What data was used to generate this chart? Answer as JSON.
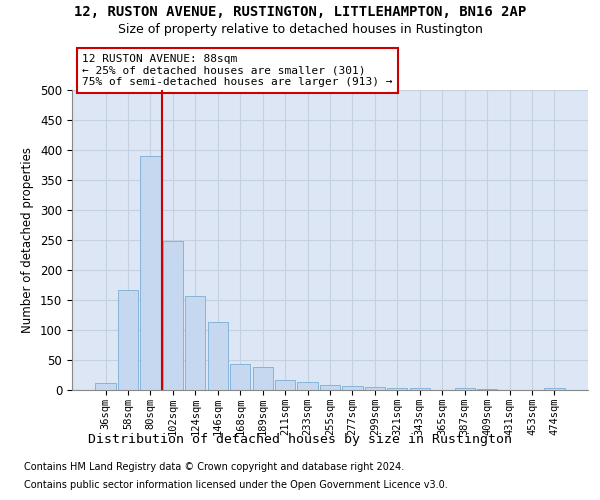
{
  "title1": "12, RUSTON AVENUE, RUSTINGTON, LITTLEHAMPTON, BN16 2AP",
  "title2": "Size of property relative to detached houses in Rustington",
  "xlabel": "Distribution of detached houses by size in Rustington",
  "ylabel": "Number of detached properties",
  "categories": [
    "36sqm",
    "58sqm",
    "80sqm",
    "102sqm",
    "124sqm",
    "146sqm",
    "168sqm",
    "189sqm",
    "211sqm",
    "233sqm",
    "255sqm",
    "277sqm",
    "299sqm",
    "321sqm",
    "343sqm",
    "365sqm",
    "387sqm",
    "409sqm",
    "431sqm",
    "453sqm",
    "474sqm"
  ],
  "values": [
    12,
    167,
    390,
    248,
    157,
    113,
    44,
    39,
    17,
    13,
    9,
    6,
    5,
    4,
    3,
    0,
    4,
    1,
    0,
    0,
    4
  ],
  "bar_color": "#c5d8f0",
  "bar_edge_color": "#7aadd4",
  "vline_color": "#cc0000",
  "vline_index": 2.5,
  "annotation_text": "12 RUSTON AVENUE: 88sqm\n← 25% of detached houses are smaller (301)\n75% of semi-detached houses are larger (913) →",
  "annotation_box_facecolor": "#ffffff",
  "annotation_box_edgecolor": "#cc0000",
  "grid_color": "#c5d0e0",
  "background_color": "#dce6f5",
  "ylim": [
    0,
    500
  ],
  "yticks": [
    0,
    50,
    100,
    150,
    200,
    250,
    300,
    350,
    400,
    450,
    500
  ],
  "footnote1": "Contains HM Land Registry data © Crown copyright and database right 2024.",
  "footnote2": "Contains public sector information licensed under the Open Government Licence v3.0."
}
